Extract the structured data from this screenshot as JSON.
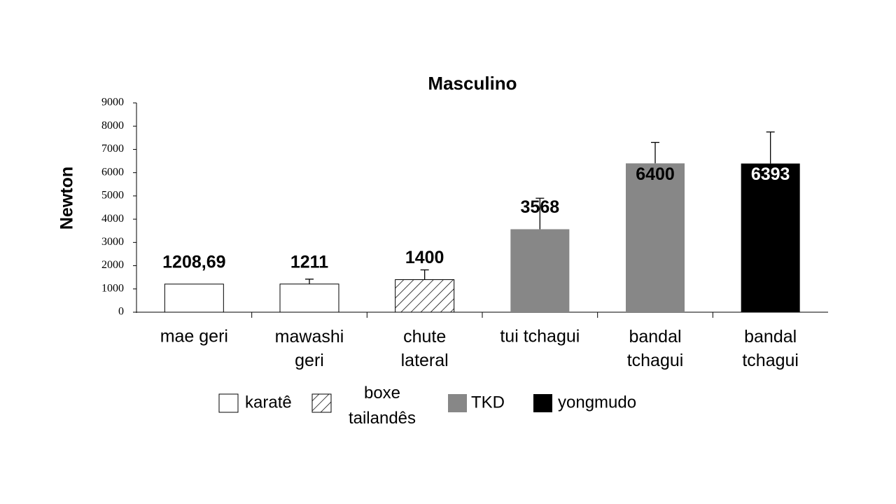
{
  "chart_data": {
    "type": "bar",
    "title": "Masculino",
    "ylabel": "Newton",
    "categories": [
      "mae geri",
      "mawashi\ngeri",
      "chute\nlateral",
      "tui tchagui",
      "bandal\ntchagui",
      "bandal\ntchagui"
    ],
    "values": [
      1208.69,
      1211,
      1400,
      3568,
      6400,
      6393
    ],
    "value_labels": [
      "1208,69",
      "1211",
      "1400",
      "3568",
      "6400",
      "6393"
    ],
    "errors": [
      null,
      210,
      420,
      1332,
      900,
      1357
    ],
    "colors": [
      "#ffffff",
      "#ffffff",
      "hatch",
      "#878787",
      "#878787",
      "#000000"
    ],
    "legend": [
      {
        "name": "karatê",
        "color": "#ffffff"
      },
      {
        "name": "boxe\ntailandês",
        "color": "hatch"
      },
      {
        "name": "TKD",
        "color": "#878787"
      },
      {
        "name": "yongmudo",
        "color": "#000000"
      }
    ],
    "ylim": [
      0,
      9000
    ],
    "yticks": [
      0,
      1000,
      2000,
      3000,
      4000,
      5000,
      6000,
      7000,
      8000,
      9000
    ]
  }
}
